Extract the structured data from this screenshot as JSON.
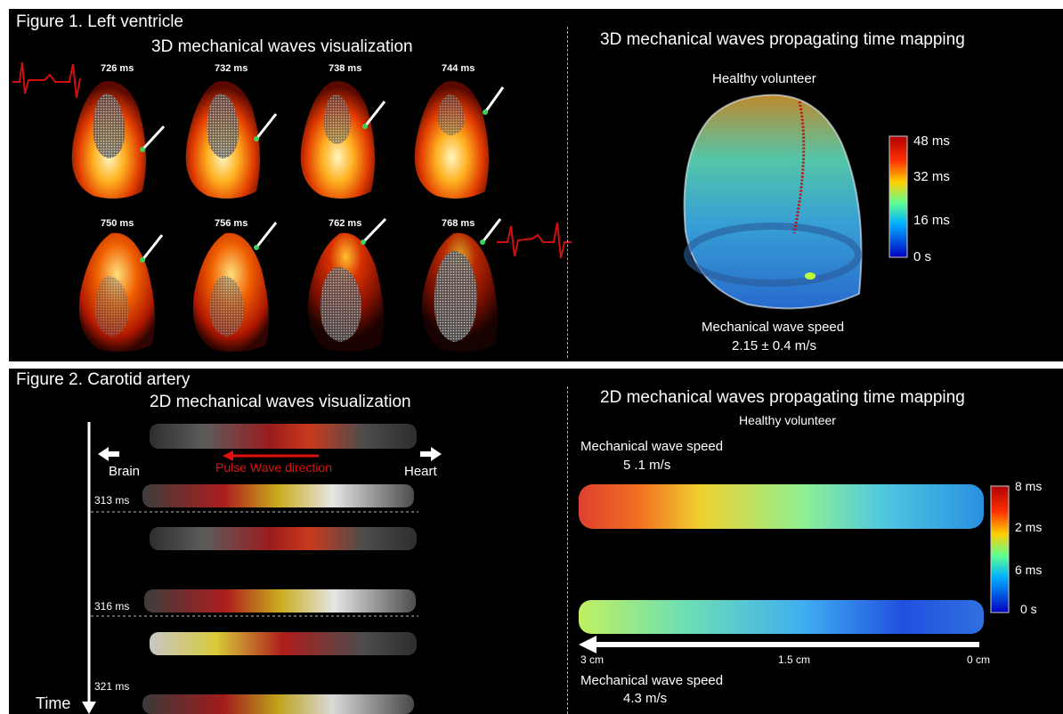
{
  "figure1": {
    "title": "Figure 1. Left ventricle",
    "left_title": "3D mechanical waves visualization",
    "right_title": "3D mechanical waves propagating time mapping",
    "subject": "Healthy volunteer",
    "frame_times": [
      "726 ms",
      "732 ms",
      "738 ms",
      "744 ms",
      "750 ms",
      "756 ms",
      "762 ms",
      "768 ms"
    ],
    "colorbar_ticks": [
      "48 ms",
      "32 ms",
      "16 ms",
      "0 s"
    ],
    "speed_label": "Mechanical wave speed",
    "speed_value": "2.15 ± 0.4 m/s"
  },
  "figure2": {
    "title": "Figure 2. Carotid artery",
    "left_title": "2D mechanical waves visualization",
    "right_title": "2D mechanical waves propagating time mapping",
    "subject": "Healthy volunteer",
    "brain_label": "Brain",
    "heart_label": "Heart",
    "pulse_label": "Pulse Wave direction",
    "time_label": "Time",
    "frame_times": [
      "313 ms",
      "316 ms",
      "321 ms"
    ],
    "speed_label_top": "Mechanical wave speed",
    "speed_value_top": "5 .1 m/s",
    "speed_label_bottom": "Mechanical wave speed",
    "speed_value_bottom": "4.3 m/s",
    "colorbar_ticks": [
      "8 ms",
      "2 ms",
      "6 ms",
      "0 s"
    ],
    "axis_ticks": [
      "3 cm",
      "1.5 cm",
      "0 cm"
    ]
  },
  "colors": {
    "background": "#000000",
    "text": "#ffffff",
    "pulse_arrow": "#e01010",
    "ecg": "#d01010"
  }
}
